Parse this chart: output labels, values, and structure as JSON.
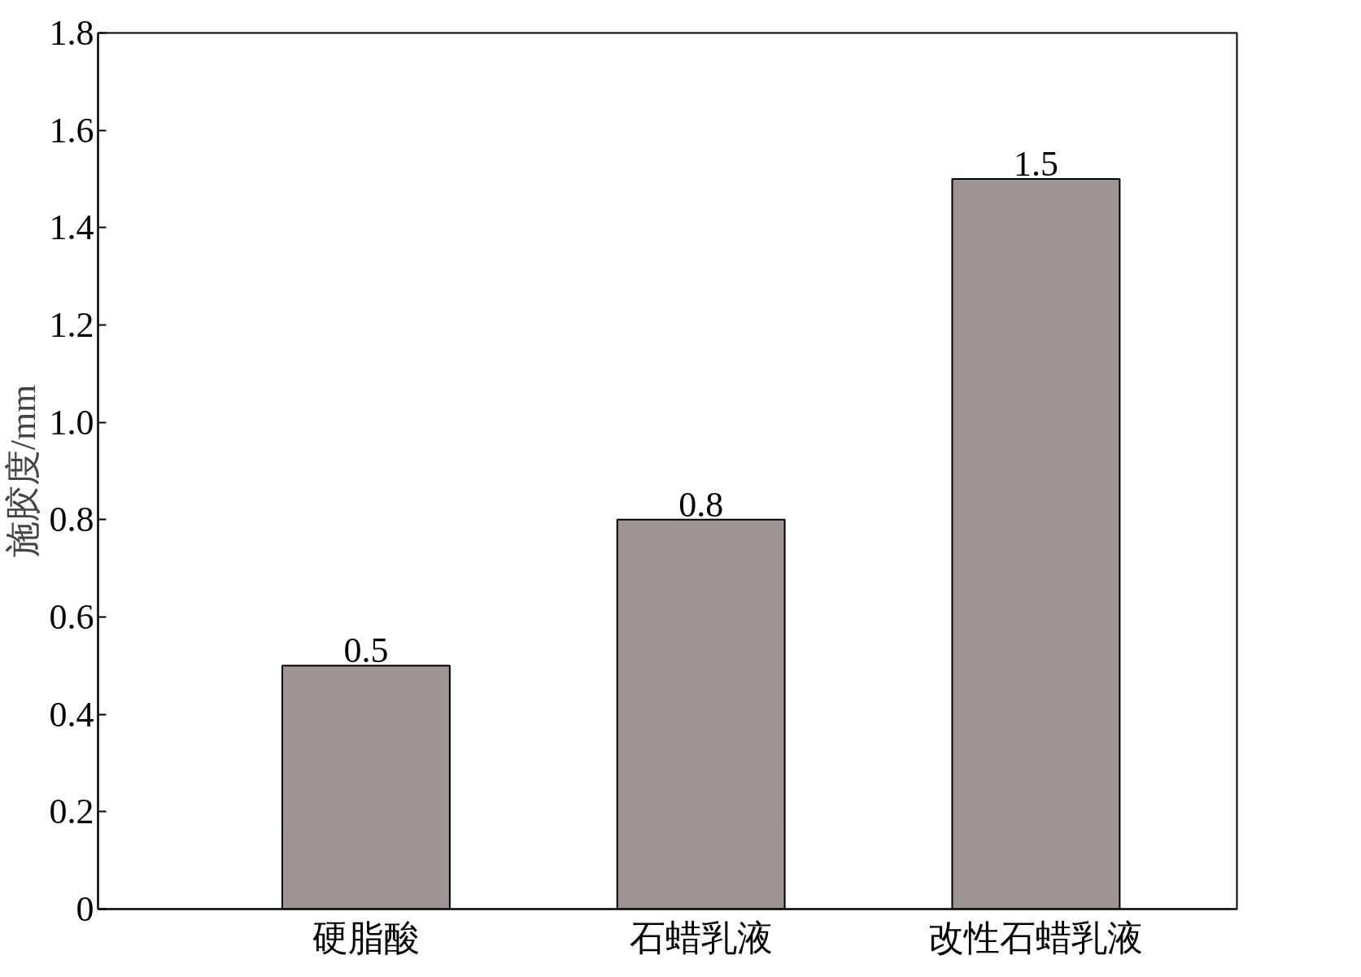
{
  "chart_data": {
    "type": "bar",
    "ylabel": "施胶度/mm",
    "categories": [
      "硬脂酸",
      "石蜡乳液",
      "改性石蜡乳液"
    ],
    "values": [
      0.5,
      0.8,
      1.5
    ],
    "color": "#9e9593",
    "ylim": [
      0,
      1.8
    ],
    "yticks": [
      0,
      0.2,
      0.4,
      0.6,
      0.8,
      {
        "value": 1.0,
        "label": "1.0"
      },
      1.2,
      1.4,
      1.6,
      1.8
    ],
    "data_labels": true,
    "grid": false
  }
}
